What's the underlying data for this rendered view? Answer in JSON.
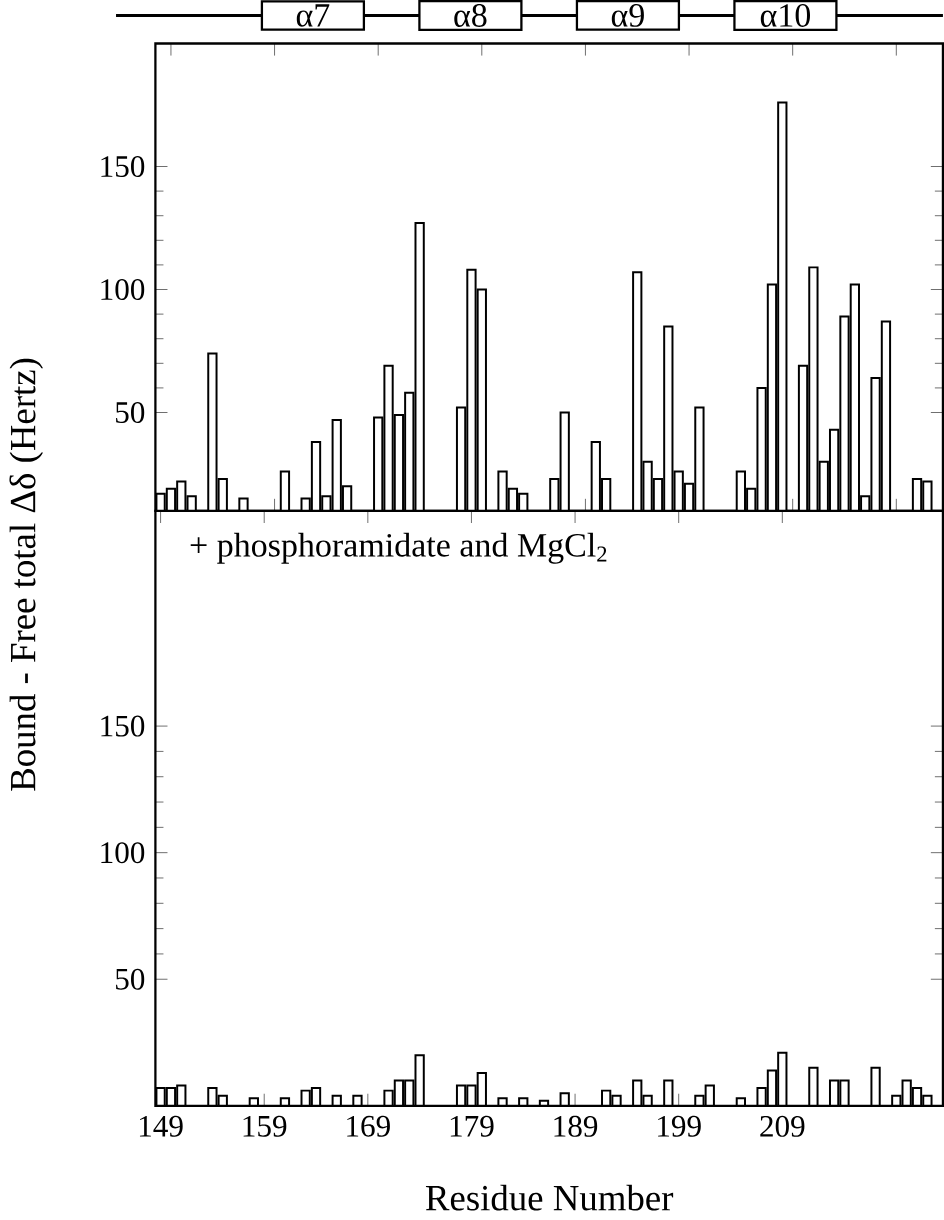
{
  "chart_data": [
    {
      "type": "bar",
      "color": "#ffffff",
      "ylabel": "Bound - Free total Δδ (Hertz)",
      "tick_labels": "y",
      "x": [
        149,
        150,
        151,
        152,
        153,
        154,
        155,
        156,
        157,
        158,
        159,
        160,
        161,
        162,
        163,
        164,
        165,
        166,
        167,
        168,
        169,
        170,
        171,
        172,
        173,
        174,
        175,
        176,
        177,
        178,
        179,
        180,
        181,
        182,
        183,
        184,
        185,
        186,
        187,
        188,
        189,
        190,
        191,
        192,
        193,
        194,
        195,
        196,
        197,
        198,
        199,
        200,
        201,
        202,
        203,
        204,
        205,
        206,
        207,
        208,
        209,
        210,
        211,
        212,
        213,
        214,
        215,
        216,
        217,
        218,
        219,
        220,
        221,
        222,
        223
      ],
      "values": [
        17,
        19,
        22,
        16,
        null,
        74,
        23,
        null,
        15,
        null,
        null,
        null,
        26,
        null,
        15,
        38,
        16,
        47,
        20,
        null,
        null,
        48,
        69,
        49,
        58,
        127,
        null,
        null,
        null,
        52,
        108,
        100,
        null,
        26,
        19,
        17,
        null,
        null,
        23,
        50,
        null,
        null,
        38,
        23,
        null,
        null,
        107,
        30,
        23,
        85,
        26,
        21,
        52,
        null,
        null,
        null,
        26,
        19,
        60,
        102,
        176,
        null,
        69,
        109,
        30,
        43,
        89,
        102,
        16,
        64,
        87,
        null,
        null,
        23,
        22
      ],
      "xlim": [
        148.5,
        224.5
      ],
      "ylim": [
        10,
        200
      ],
      "yticks": [
        50,
        100,
        150
      ],
      "annotations": [
        "α7",
        "α8",
        "α9",
        "α10"
      ]
    },
    {
      "type": "bar",
      "color": "#ffffff",
      "xlabel": "Residue Number",
      "x": [
        149,
        150,
        151,
        152,
        153,
        154,
        155,
        156,
        157,
        158,
        159,
        160,
        161,
        162,
        163,
        164,
        165,
        166,
        167,
        168,
        169,
        170,
        171,
        172,
        173,
        174,
        175,
        176,
        177,
        178,
        179,
        180,
        181,
        182,
        183,
        184,
        185,
        186,
        187,
        188,
        189,
        190,
        191,
        192,
        193,
        194,
        195,
        196,
        197,
        198,
        199,
        200,
        201,
        202,
        203,
        204,
        205,
        206,
        207,
        208,
        209,
        210,
        211,
        212,
        213,
        214,
        215,
        216,
        217,
        218,
        219,
        220,
        221,
        222,
        223
      ],
      "values": [
        7,
        7,
        8,
        null,
        null,
        7,
        4,
        null,
        null,
        3,
        null,
        null,
        3,
        null,
        6,
        7,
        null,
        4,
        null,
        4,
        null,
        null,
        6,
        10,
        10,
        20,
        null,
        null,
        null,
        8,
        8,
        13,
        null,
        3,
        null,
        3,
        null,
        2,
        null,
        5,
        null,
        null,
        null,
        6,
        4,
        null,
        10,
        4,
        null,
        10,
        null,
        null,
        4,
        8,
        null,
        null,
        3,
        null,
        7,
        14,
        21,
        null,
        null,
        15,
        null,
        10,
        10,
        null,
        null,
        15,
        null,
        4,
        10,
        7,
        4
      ],
      "xlim": [
        148.5,
        224.5
      ],
      "ylim": [
        0,
        235
      ],
      "xticks": [
        149,
        159,
        169,
        179,
        189,
        199,
        209
      ],
      "yticks": [
        50,
        100,
        150
      ],
      "annotations": [
        "+ phosphoramidate and MgCl$_{2}$"
      ]
    }
  ]
}
